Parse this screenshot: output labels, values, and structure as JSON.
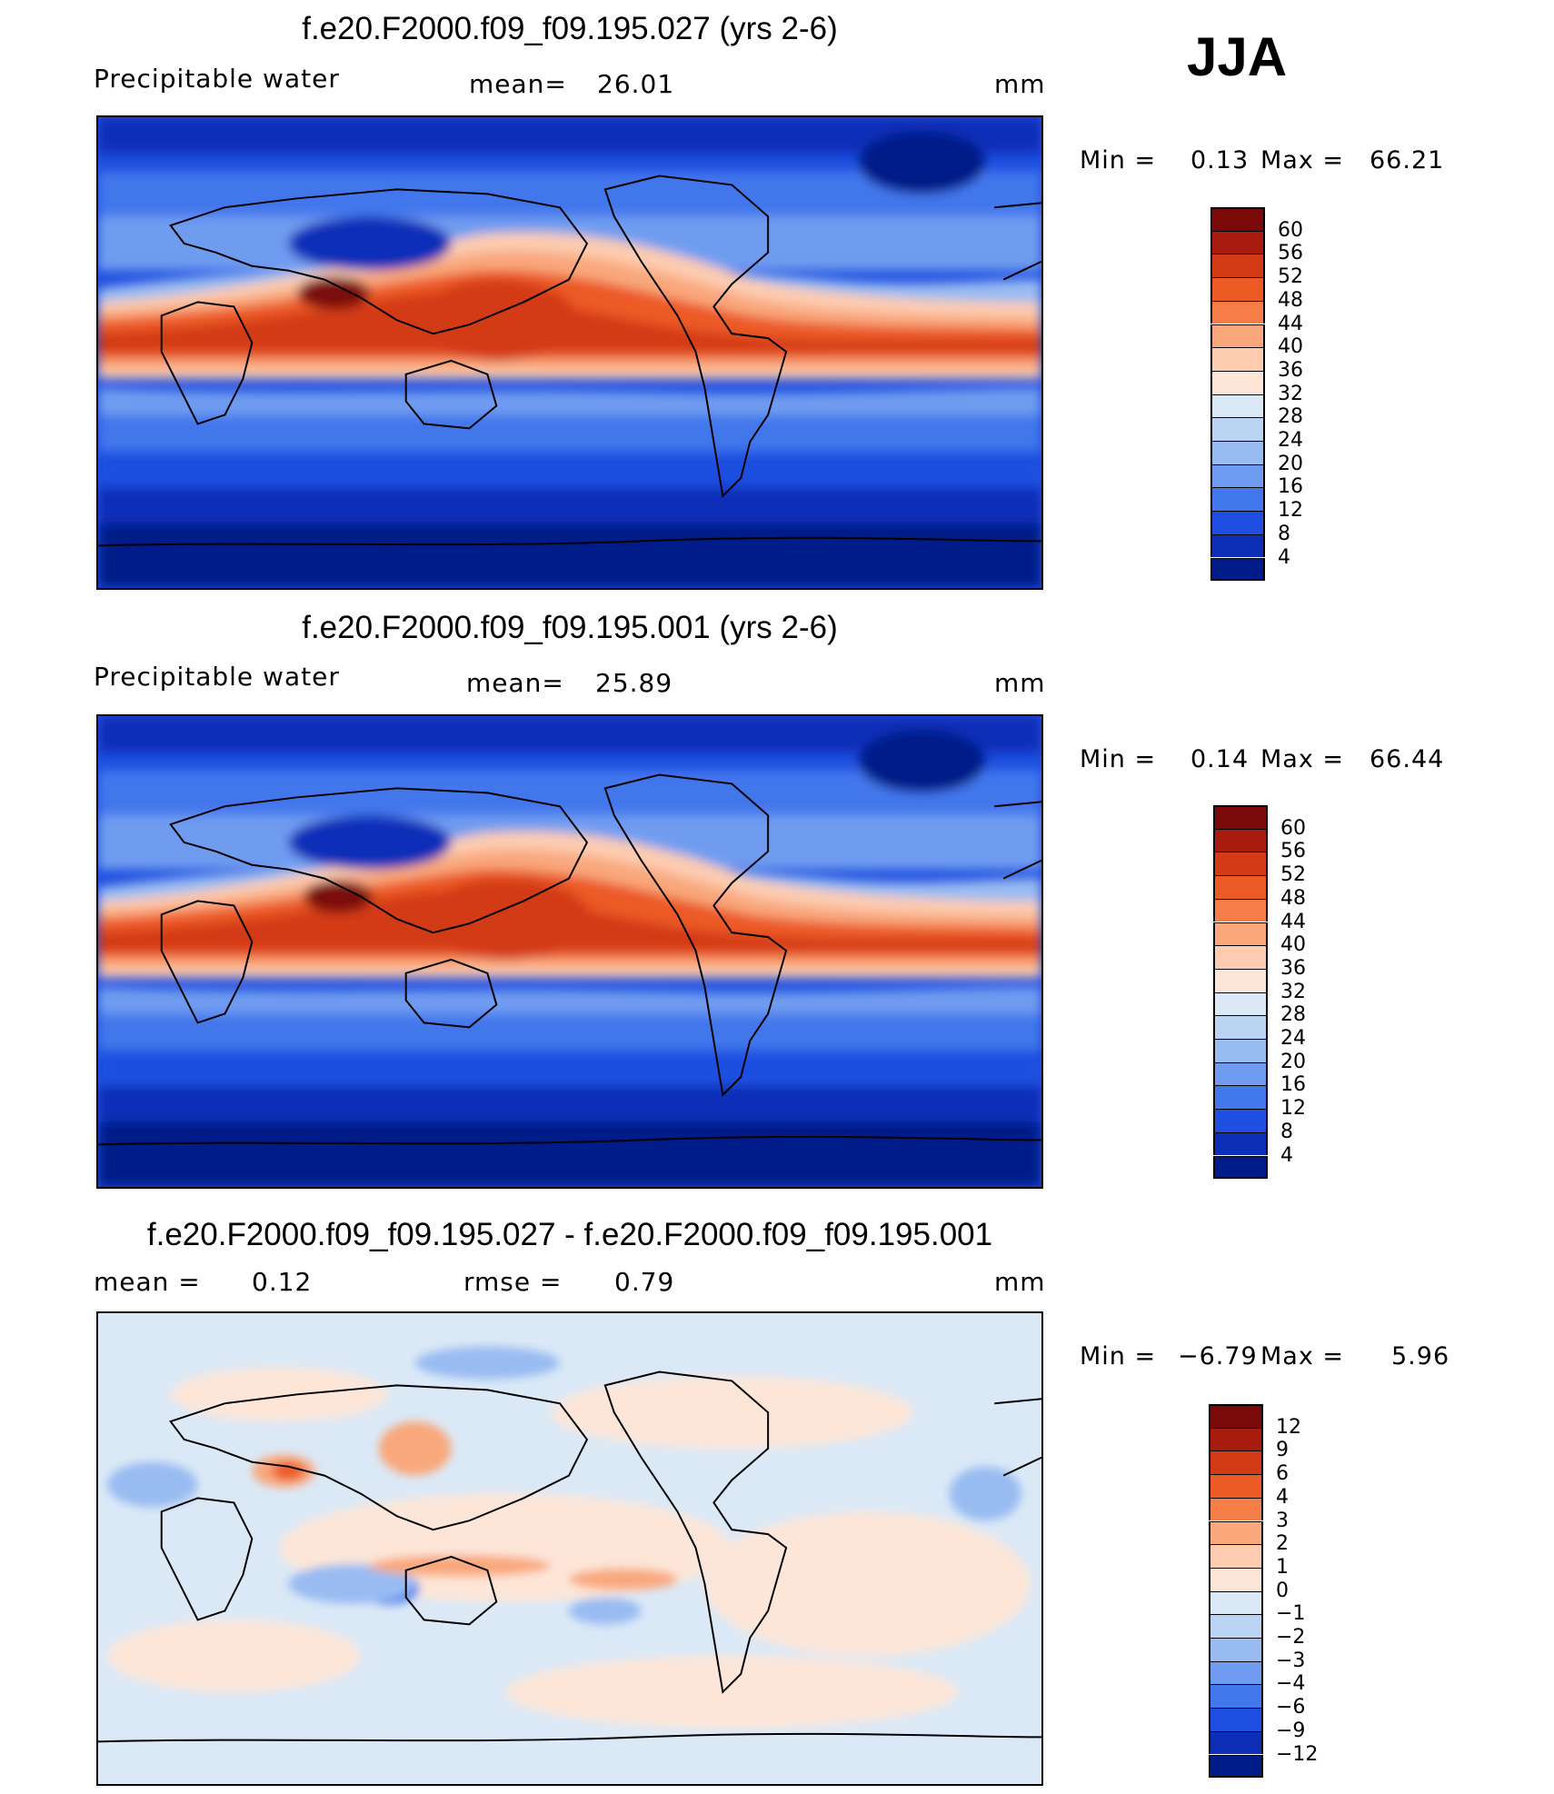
{
  "season": "JJA",
  "panels": [
    {
      "title": "f.e20.F2000.f09_f09.195.027 (yrs 2-6)",
      "variable": "Precipitable water",
      "stat_label": "mean=",
      "stat_value": "26.01",
      "units": "mm",
      "min_label": "Min =",
      "min_value": "0.13",
      "max_label": "Max =",
      "max_value": "66.21",
      "colorbar_labels": [
        "60",
        "56",
        "52",
        "48",
        "44",
        "40",
        "36",
        "32",
        "28",
        "24",
        "20",
        "16",
        "12",
        "8",
        "4"
      ]
    },
    {
      "title": "f.e20.F2000.f09_f09.195.001 (yrs 2-6)",
      "variable": "Precipitable water",
      "stat_label": "mean=",
      "stat_value": "25.89",
      "units": "mm",
      "min_label": "Min =",
      "min_value": "0.14",
      "max_label": "Max =",
      "max_value": "66.44",
      "colorbar_labels": [
        "60",
        "56",
        "52",
        "48",
        "44",
        "40",
        "36",
        "32",
        "28",
        "24",
        "20",
        "16",
        "12",
        "8",
        "4"
      ]
    },
    {
      "title": "f.e20.F2000.f09_f09.195.027 - f.e20.F2000.f09_f09.195.001",
      "mean_label": "mean =",
      "mean_value": "0.12",
      "rmse_label": "rmse =",
      "rmse_value": "0.79",
      "units": "mm",
      "min_label": "Min =",
      "min_value": "−6.79",
      "max_label": "Max =",
      "max_value": "5.96",
      "colorbar_labels": [
        "12",
        "9",
        "6",
        "4",
        "3",
        "2",
        "1",
        "0",
        "−1",
        "−2",
        "−3",
        "−4",
        "−6",
        "−9",
        "−12"
      ]
    }
  ],
  "palettes": {
    "abs": [
      "#7a0a0a",
      "#a71c0e",
      "#d33a16",
      "#ec5a26",
      "#f57e48",
      "#f9a77b",
      "#fdccb0",
      "#fde6d8",
      "#dbe9f7",
      "#bcd4f4",
      "#98bbf2",
      "#6f9cf0",
      "#4377ec",
      "#1f4fe0",
      "#0d2fb8",
      "#001c88"
    ],
    "diff": [
      "#7a0a0a",
      "#a71c0e",
      "#d33a16",
      "#ec5a26",
      "#f57e48",
      "#f9a77b",
      "#fdccb0",
      "#fde6d8",
      "#dbe9f7",
      "#bcd4f4",
      "#98bbf2",
      "#6f9cf0",
      "#4377ec",
      "#1f4fe0",
      "#0d2fb8",
      "#001c88"
    ]
  }
}
